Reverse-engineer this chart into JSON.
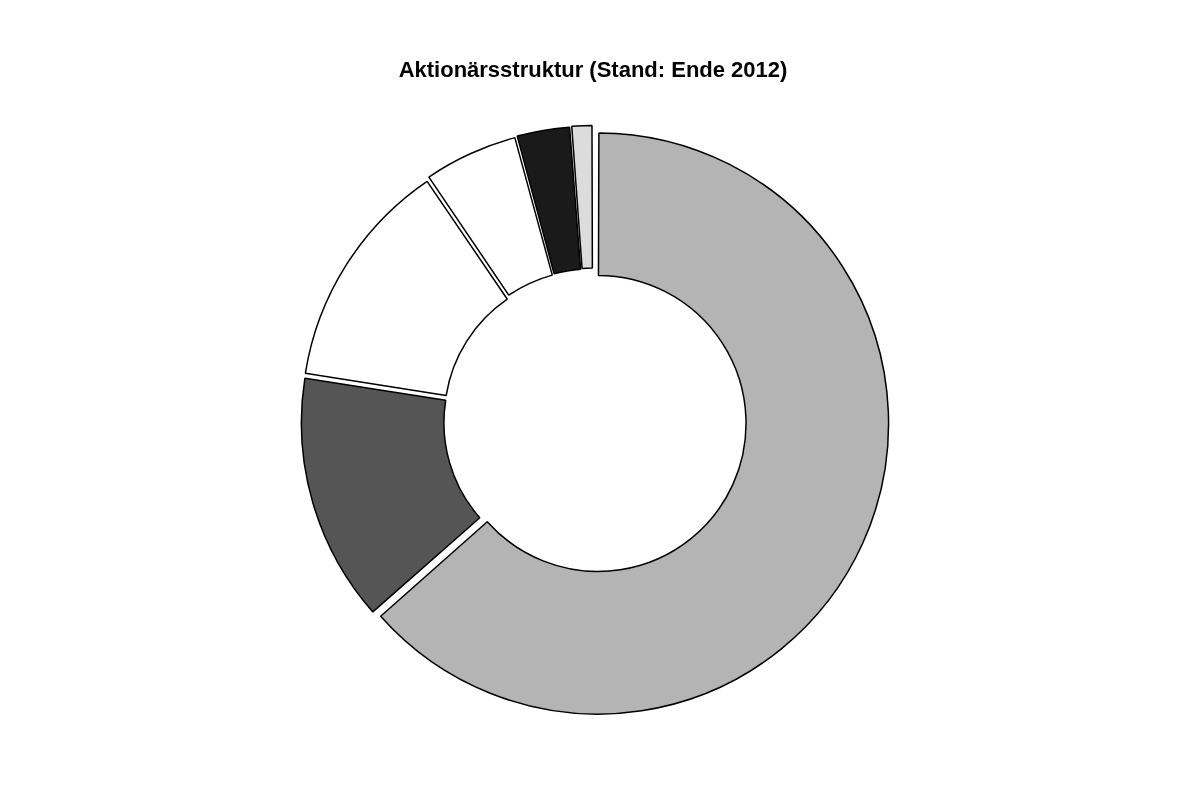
{
  "chart_data": {
    "type": "donut",
    "title": "Aktionärsstruktur (Stand: Ende 2012)",
    "categories": [
      null,
      null,
      null,
      null,
      null,
      null
    ],
    "values": [
      63.5,
      14,
      13,
      5.3,
      3,
      1.2
    ],
    "colors": [
      "#b4b4b4",
      "#555555",
      "#ffffff",
      "#ffffff",
      "#1a1a1a",
      "#dcdcdc"
    ],
    "legend": false
  }
}
